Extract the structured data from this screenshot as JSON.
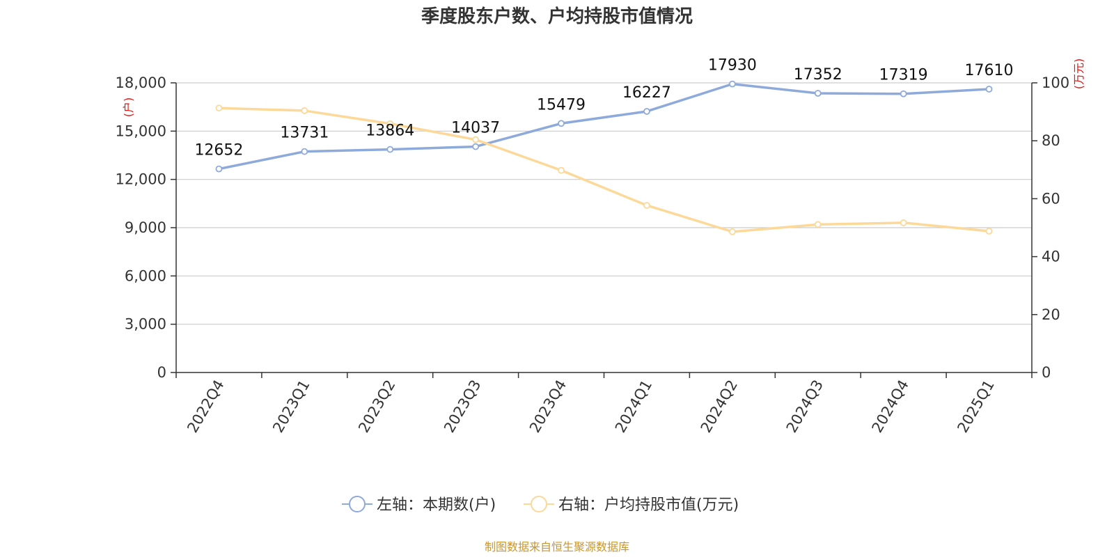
{
  "chart_data": {
    "type": "line",
    "title": "季度股东户数、户均持股市值情况",
    "categories": [
      "2022Q4",
      "2023Q1",
      "2023Q2",
      "2023Q3",
      "2023Q4",
      "2024Q1",
      "2024Q2",
      "2024Q3",
      "2024Q4",
      "2025Q1"
    ],
    "left_axis": {
      "unit": "(户)",
      "ylim": [
        0,
        18000
      ],
      "ticks": [
        0,
        3000,
        6000,
        9000,
        12000,
        15000,
        18000
      ],
      "tick_labels": [
        "0",
        "3,000",
        "6,000",
        "9,000",
        "12,000",
        "15,000",
        "18,000"
      ]
    },
    "right_axis": {
      "unit": "(万元)",
      "ylim": [
        0,
        100
      ],
      "ticks": [
        0,
        20,
        40,
        60,
        80,
        100
      ],
      "tick_labels": [
        "0",
        "20",
        "40",
        "60",
        "80",
        "100"
      ]
    },
    "series": [
      {
        "name": "左轴：本期数(户)",
        "axis": "left",
        "color": "#8eaadb",
        "values": [
          12652,
          13731,
          13864,
          14037,
          15479,
          16227,
          17930,
          17352,
          17319,
          17610
        ],
        "labels": [
          "12652",
          "13731",
          "13864",
          "14037",
          "15479",
          "16227",
          "17930",
          "17352",
          "17319",
          "17610"
        ]
      },
      {
        "name": "右轴：户均持股市值(万元)",
        "axis": "right",
        "color": "#fcd899",
        "values": [
          91.3,
          90.4,
          85.9,
          80.4,
          69.8,
          57.7,
          48.6,
          51.1,
          51.7,
          48.8
        ]
      }
    ],
    "grid": true,
    "legend_position": "bottom",
    "source": "制图数据来自恒生聚源数据库"
  }
}
